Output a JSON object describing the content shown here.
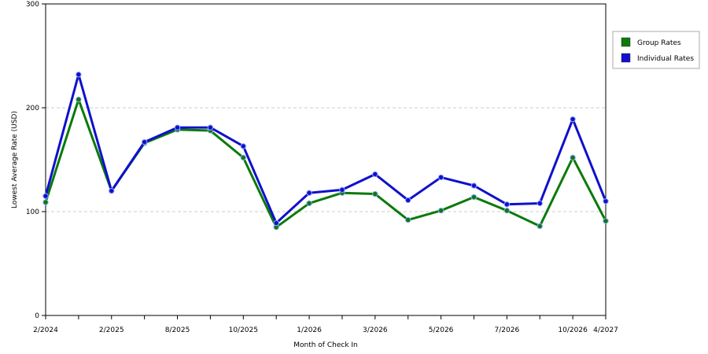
{
  "chart_data": {
    "type": "line",
    "title": "",
    "xlabel": "Month of Check In",
    "ylabel": "Lowest Average Rate (USD)",
    "ylim": [
      0,
      300
    ],
    "yticks": [
      0,
      100,
      200,
      300
    ],
    "grid": true,
    "legend_position": "top-right",
    "x": [
      "2/2024",
      "",
      "2/2025",
      "",
      "8/2025",
      "",
      "10/2025",
      "",
      "1/2026",
      "",
      "3/2026",
      "",
      "5/2026",
      "",
      "7/2026",
      "",
      "10/2026",
      "4/2027"
    ],
    "series": [
      {
        "name": "Group Rates",
        "color": "#0a7a0a",
        "values": [
          109,
          208,
          120,
          166,
          179,
          178,
          152,
          85,
          108,
          118,
          117,
          92,
          101,
          114,
          101,
          86,
          152,
          91
        ]
      },
      {
        "name": "Individual Rates",
        "color": "#1010cc",
        "values": [
          115,
          232,
          120,
          167,
          181,
          181,
          163,
          89,
          118,
          121,
          136,
          111,
          133,
          125,
          107,
          108,
          189,
          110
        ]
      }
    ]
  }
}
